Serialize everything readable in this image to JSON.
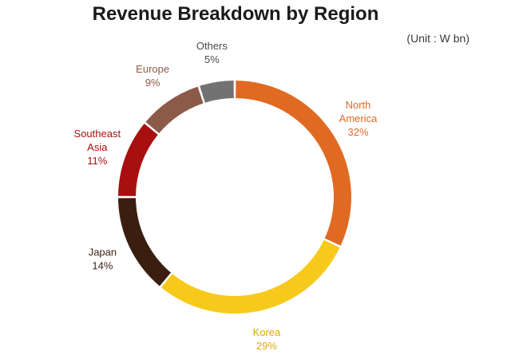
{
  "unit_label": "(Unit : W bn)",
  "chart_data": {
    "type": "pie",
    "title": "Revenue Breakdown by Region",
    "categories": [
      "North America",
      "Korea",
      "Japan",
      "Southeast Asia",
      "Europe",
      "Others"
    ],
    "values": [
      32,
      29,
      14,
      11,
      9,
      5
    ],
    "value_labels": [
      "32%",
      "29%",
      "14%",
      "11%",
      "9%",
      "5%"
    ],
    "label_lines": [
      [
        "North",
        "America"
      ],
      [
        "Korea"
      ],
      [
        "Japan"
      ],
      [
        "Southeast",
        "Asia"
      ],
      [
        "Europe"
      ],
      [
        "Others"
      ]
    ],
    "colors": [
      "#E06A22",
      "#F7C91A",
      "#3A1F10",
      "#A80F0F",
      "#8C5A48",
      "#727272"
    ],
    "label_colors": [
      "#E06A22",
      "#E0A800",
      "#3A1F10",
      "#A80F0F",
      "#8C5A48",
      "#4a4a4a"
    ],
    "donut": true,
    "start_angle_deg": 0,
    "direction": "clockwise",
    "legend": "none"
  }
}
